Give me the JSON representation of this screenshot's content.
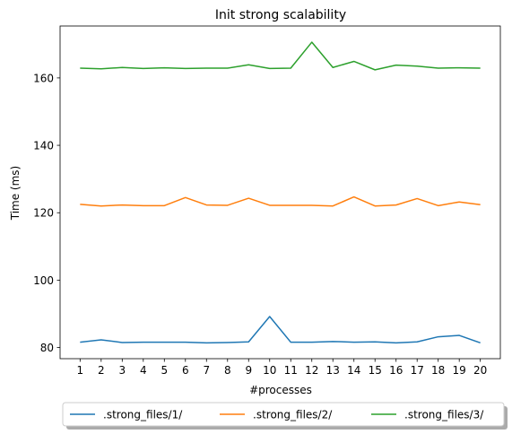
{
  "chart_data": {
    "type": "line",
    "title": "Init strong scalability",
    "xlabel": "#processes",
    "ylabel": "Time (ms)",
    "x": [
      1,
      2,
      3,
      4,
      5,
      6,
      7,
      8,
      9,
      10,
      11,
      12,
      13,
      14,
      15,
      16,
      17,
      18,
      19,
      20
    ],
    "xlim": [
      0.05,
      20.95
    ],
    "ylim": [
      76.7,
      175.4
    ],
    "yticks": [
      80,
      100,
      120,
      140,
      160
    ],
    "grid": false,
    "legend_position": "bottom-center",
    "series": [
      {
        "name": ".strong_files/1/",
        "color": "#1f77b4",
        "values": [
          81.6,
          82.3,
          81.5,
          81.6,
          81.6,
          81.6,
          81.4,
          81.5,
          81.7,
          89.2,
          81.6,
          81.6,
          81.8,
          81.6,
          81.7,
          81.4,
          81.7,
          83.2,
          83.6,
          81.4
        ]
      },
      {
        "name": ".strong_files/2/",
        "color": "#ff7f0e",
        "values": [
          122.5,
          122.0,
          122.3,
          122.1,
          122.1,
          124.5,
          122.3,
          122.2,
          124.3,
          122.2,
          122.2,
          122.2,
          122.0,
          124.7,
          122.0,
          122.3,
          124.2,
          122.1,
          123.2,
          122.4
        ]
      },
      {
        "name": ".strong_files/3/",
        "color": "#2ca02c",
        "values": [
          162.9,
          162.7,
          163.1,
          162.8,
          163.0,
          162.8,
          162.9,
          162.9,
          163.9,
          162.8,
          162.9,
          170.6,
          163.1,
          164.9,
          162.4,
          163.8,
          163.5,
          162.9,
          163.0,
          162.9
        ]
      }
    ]
  }
}
